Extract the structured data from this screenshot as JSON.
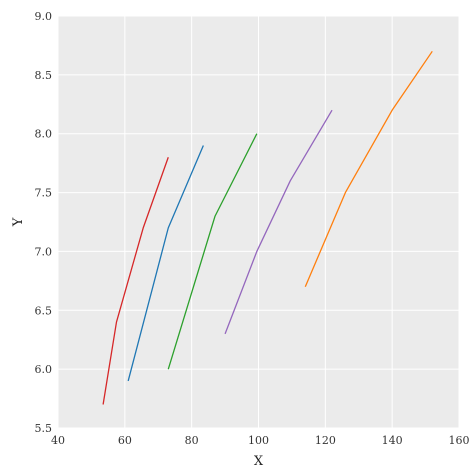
{
  "chart_data": {
    "type": "line",
    "xlabel": "X",
    "ylabel": "Y",
    "xlim": [
      40,
      160
    ],
    "ylim": [
      5.5,
      9.0
    ],
    "xticks": [
      "40",
      "60",
      "80",
      "100",
      "120",
      "140",
      "160"
    ],
    "yticks": [
      "5.5",
      "6.0",
      "6.5",
      "7.0",
      "7.5",
      "8.0",
      "8.5",
      "9.0"
    ],
    "grid": true,
    "series": [
      {
        "color": "#d62728",
        "points": [
          [
            53.5,
            5.7
          ],
          [
            57.5,
            6.4
          ],
          [
            65.5,
            7.2
          ],
          [
            73,
            7.8
          ]
        ]
      },
      {
        "color": "#1f77b4",
        "points": [
          [
            61,
            5.9
          ],
          [
            73,
            7.2
          ],
          [
            83.5,
            7.9
          ]
        ]
      },
      {
        "color": "#2ca02c",
        "points": [
          [
            73,
            6.0
          ],
          [
            87,
            7.3
          ],
          [
            99.5,
            8.0
          ]
        ]
      },
      {
        "color": "#9467bd",
        "points": [
          [
            90,
            6.3
          ],
          [
            99.5,
            7.0
          ],
          [
            109.5,
            7.6
          ],
          [
            122,
            8.2
          ]
        ]
      },
      {
        "color": "#ff7f0e",
        "points": [
          [
            114,
            6.7
          ],
          [
            126,
            7.5
          ],
          [
            140,
            8.2
          ],
          [
            152,
            8.7
          ]
        ]
      }
    ]
  }
}
